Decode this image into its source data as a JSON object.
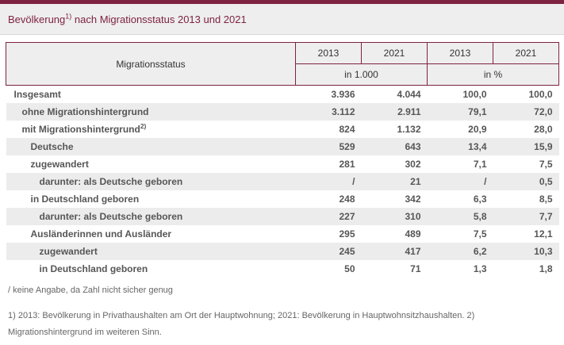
{
  "title": {
    "main": "Bevölkerung",
    "sup": "1)",
    "rest": " nach Migrationsstatus 2013 und 2021"
  },
  "table": {
    "header": {
      "col0": "Migrationsstatus",
      "years": [
        "2013",
        "2021",
        "2013",
        "2021"
      ],
      "units": [
        "in 1.000",
        "in %"
      ]
    },
    "rows": [
      {
        "label": "Insgesamt",
        "sup": "",
        "values": [
          "3.936",
          "4.044",
          "100,0",
          "100,0"
        ]
      },
      {
        "label": "ohne Migrationshintergrund",
        "sup": "",
        "values": [
          "3.112",
          "2.911",
          "79,1",
          "72,0"
        ]
      },
      {
        "label": "mit Migrationshintergrund",
        "sup": "2)",
        "values": [
          "824",
          "1.132",
          "20,9",
          "28,0"
        ]
      },
      {
        "label": "Deutsche",
        "sup": "",
        "values": [
          "529",
          "643",
          "13,4",
          "15,9"
        ]
      },
      {
        "label": "zugewandert",
        "sup": "",
        "values": [
          "281",
          "302",
          "7,1",
          "7,5"
        ]
      },
      {
        "label": "darunter: als Deutsche geboren",
        "sup": "",
        "values": [
          "/",
          "21",
          "/",
          "0,5"
        ]
      },
      {
        "label": "in Deutschland geboren",
        "sup": "",
        "values": [
          "248",
          "342",
          "6,3",
          "8,5"
        ]
      },
      {
        "label": "darunter: als Deutsche geboren",
        "sup": "",
        "values": [
          "227",
          "310",
          "5,8",
          "7,7"
        ]
      },
      {
        "label": "Ausländerinnen und Ausländer",
        "sup": "",
        "values": [
          "295",
          "489",
          "7,5",
          "12,1"
        ]
      },
      {
        "label": "zugewandert",
        "sup": "",
        "values": [
          "245",
          "417",
          "6,2",
          "10,3"
        ]
      },
      {
        "label": "in Deutschland geboren",
        "sup": "",
        "values": [
          "50",
          "71",
          "1,3",
          "1,8"
        ]
      }
    ]
  },
  "footnotes": [
    "/ keine Angabe, da Zahl nicht sicher genug",
    "1) 2013: Bevölkerung in Privathaushalten am Ort der Hauptwohnung; 2021: Bevölkerung in Hauptwohnsitzhaushalten. 2) Migrationshintergrund im weiteren Sinn."
  ],
  "colors": {
    "accent_maroon": "#7e2242",
    "header_background": "#eeeeee",
    "row_stripe": "#ececec",
    "body_text": "#565656",
    "footnote_text": "#666666"
  },
  "chart_data": {
    "type": "table",
    "title": "Bevölkerung nach Migrationsstatus 2013 und 2021",
    "columns": [
      "Migrationsstatus",
      "2013 in 1.000",
      "2021 in 1.000",
      "2013 in %",
      "2021 in %"
    ],
    "rows": [
      [
        "Insgesamt",
        3936,
        4044,
        100.0,
        100.0
      ],
      [
        "ohne Migrationshintergrund",
        3112,
        2911,
        79.1,
        72.0
      ],
      [
        "mit Migrationshintergrund",
        824,
        1132,
        20.9,
        28.0
      ],
      [
        "Deutsche",
        529,
        643,
        13.4,
        15.9
      ],
      [
        "zugewandert",
        281,
        302,
        7.1,
        7.5
      ],
      [
        "darunter: als Deutsche geboren",
        null,
        21,
        null,
        0.5
      ],
      [
        "in Deutschland geboren",
        248,
        342,
        6.3,
        8.5
      ],
      [
        "darunter: als Deutsche geboren",
        227,
        310,
        5.8,
        7.7
      ],
      [
        "Ausländerinnen und Ausländer",
        295,
        489,
        7.5,
        12.1
      ],
      [
        "zugewandert",
        245,
        417,
        6.2,
        10.3
      ],
      [
        "in Deutschland geboren",
        50,
        71,
        1.3,
        1.8
      ]
    ],
    "notes": "/ = keine Angabe, da Zahl nicht sicher genug"
  }
}
